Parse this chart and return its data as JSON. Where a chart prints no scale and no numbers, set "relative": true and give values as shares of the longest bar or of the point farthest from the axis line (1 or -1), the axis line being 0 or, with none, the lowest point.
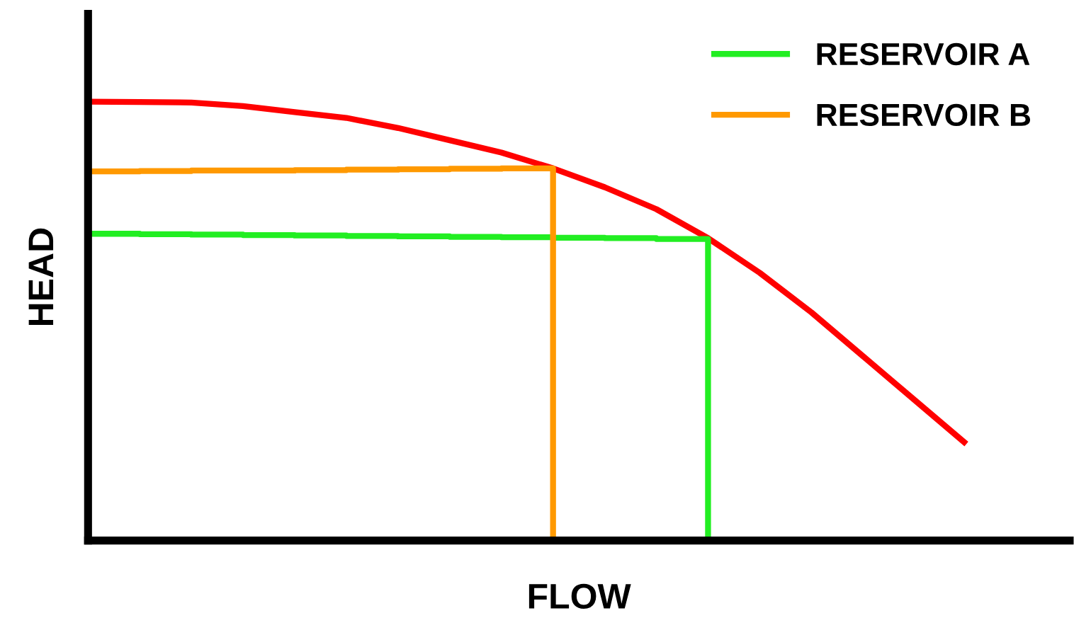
{
  "chart_data": {
    "type": "line",
    "relative": true,
    "xlabel": "FLOW",
    "ylabel": "HEAD",
    "legend": "top right",
    "marker": "none",
    "line_style": "solid",
    "categories": [
      null,
      null,
      null,
      null,
      null,
      null,
      null,
      null,
      null,
      null,
      null,
      null,
      null,
      null,
      null,
      null,
      null,
      null,
      null
    ],
    "series": [
      {
        "color": "#ff0000",
        "values": [
          1.0,
          0.999,
          0.998,
          0.99,
          0.976,
          0.963,
          0.94,
          0.912,
          0.884,
          0.848,
          0.805,
          0.755,
          0.689,
          0.61,
          0.52,
          0.42,
          0.32,
          0.22,
          null
        ]
      },
      {
        "name": "RESERVOIR A",
        "type": "step",
        "color": "#22ee22",
        "values": [
          0.699,
          0.698,
          0.697,
          0.696,
          0.695,
          0.694,
          0.693,
          0.692,
          0.691,
          0.69,
          0.689,
          0.687,
          0,
          null,
          null,
          null,
          null,
          null,
          null
        ]
      },
      {
        "name": "RESERVOIR B",
        "type": "step",
        "color": "#ff9900",
        "values": [
          0.841,
          0.842,
          0.843,
          0.843,
          0.844,
          0.845,
          0.846,
          0.847,
          0.848,
          0,
          null,
          null,
          null,
          null,
          null,
          null,
          null,
          null,
          null
        ]
      }
    ]
  }
}
